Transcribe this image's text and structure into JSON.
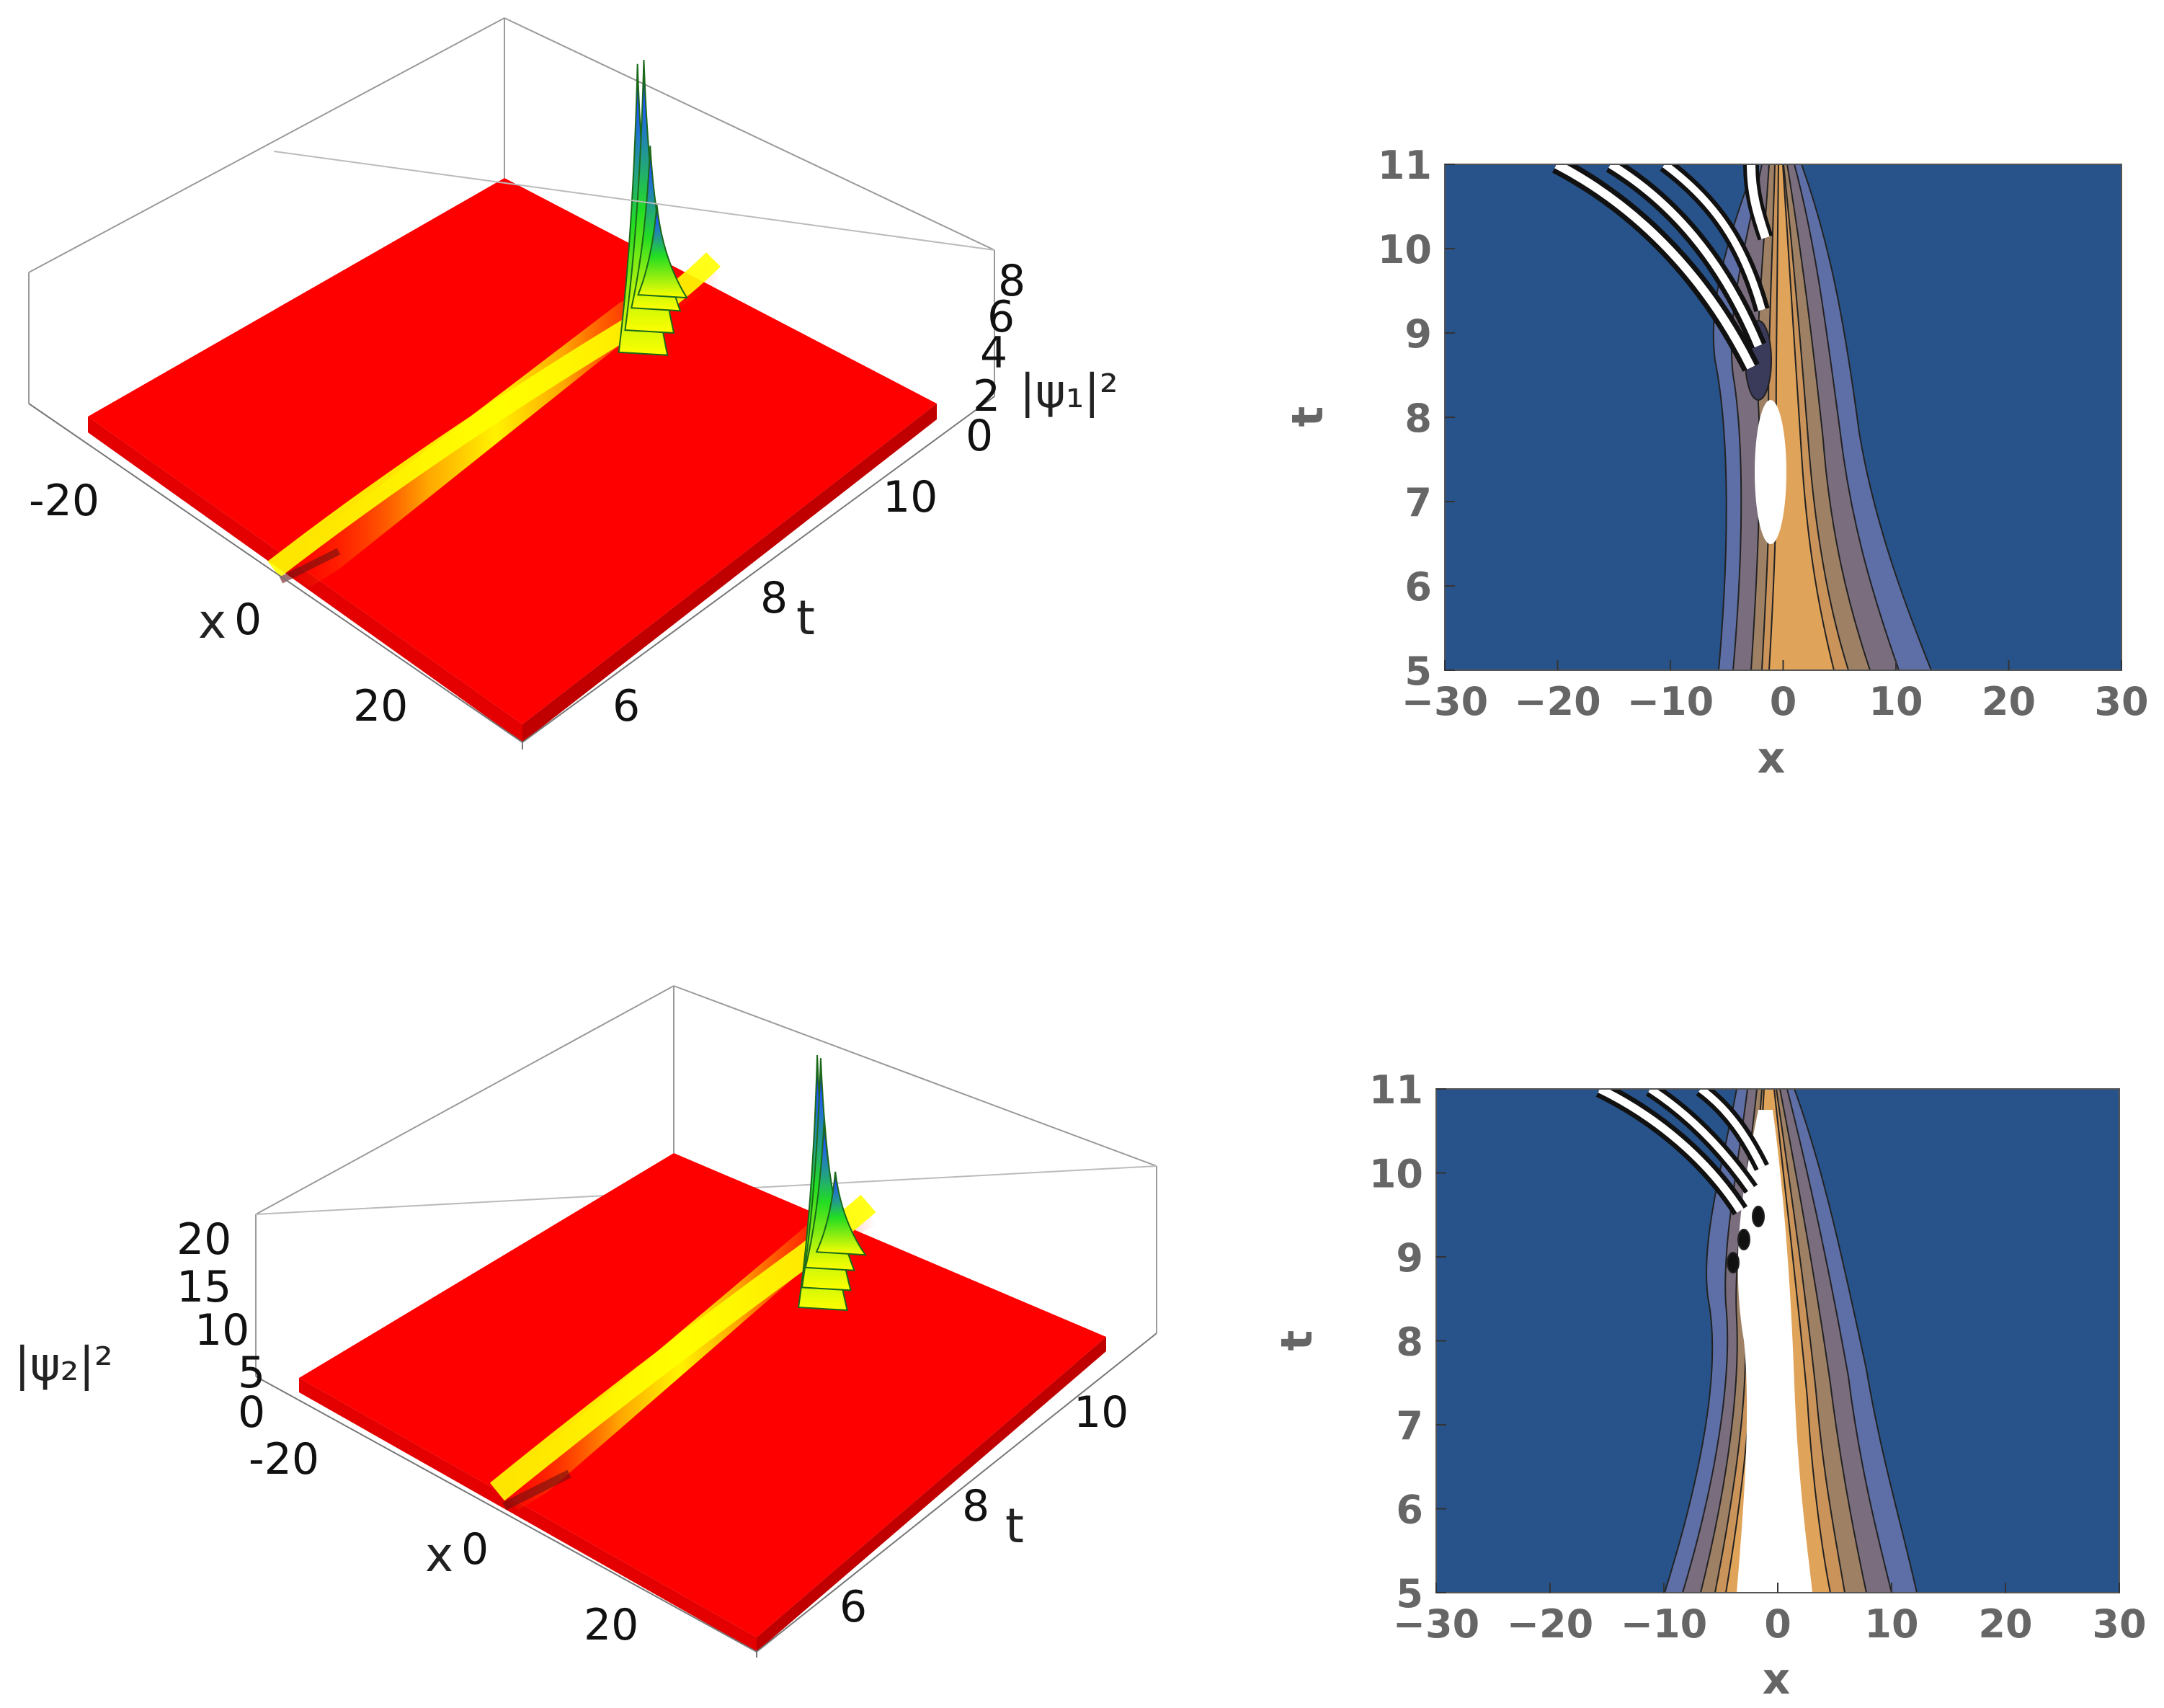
{
  "chart_data": [
    {
      "type": "surface3d",
      "panel": "top-left",
      "zlabel": "|ψ₁|²",
      "xlabel": "x",
      "ylabel": "t",
      "x_ticks": [
        "-20",
        "0",
        "20"
      ],
      "t_ticks": [
        "6",
        "8",
        "10"
      ],
      "z_ticks": [
        "0",
        "2",
        "4",
        "6",
        "8"
      ],
      "xlim": [
        -30,
        30
      ],
      "tlim": [
        5,
        11
      ],
      "zlim": [
        0,
        8
      ],
      "background_level": 1,
      "soliton": {
        "x_at_t_min": 0,
        "x_at_t_max": -2,
        "peak_value": 2.5
      },
      "spikes": [
        {
          "t": 10.1,
          "x": -3,
          "height": 8.0
        },
        {
          "t": 10.4,
          "x": -5,
          "height": 7.5
        },
        {
          "t": 10.7,
          "x": -7,
          "height": 4.5
        },
        {
          "t": 10.9,
          "x": -8,
          "height": 2.5
        }
      ],
      "colors": {
        "surface": "#ff0000",
        "ridge": "#ffff00",
        "spike": "#22dd22",
        "frame": "#999999"
      }
    },
    {
      "type": "contour",
      "panel": "top-right",
      "xlabel": "x",
      "ylabel": "t",
      "x_ticks": [
        "−30",
        "−20",
        "−10",
        "0",
        "10",
        "20",
        "30"
      ],
      "t_ticks": [
        "5",
        "6",
        "7",
        "8",
        "9",
        "10",
        "11"
      ],
      "xlim": [
        -30,
        30
      ],
      "tlim": [
        5,
        11
      ],
      "colors": {
        "background": "#27538a",
        "warm": "#e0a35a",
        "peak": "#ffffff",
        "line": "#222222"
      }
    },
    {
      "type": "surface3d",
      "panel": "bottom-left",
      "zlabel": "|ψ₂|²",
      "xlabel": "x",
      "ylabel": "t",
      "x_ticks": [
        "-20",
        "0",
        "20"
      ],
      "t_ticks": [
        "6",
        "8",
        "10"
      ],
      "z_ticks": [
        "0",
        "5",
        "10",
        "15",
        "20"
      ],
      "xlim": [
        -30,
        30
      ],
      "tlim": [
        5,
        11
      ],
      "zlim": [
        0,
        22
      ],
      "background_level": 1,
      "soliton": {
        "x_at_t_min": 0,
        "x_at_t_max": -2,
        "peak_value": 7
      },
      "spikes": [
        {
          "t": 10.0,
          "x": -3,
          "height": 22
        },
        {
          "t": 10.3,
          "x": -5,
          "height": 20
        },
        {
          "t": 10.6,
          "x": -7,
          "height": 13
        },
        {
          "t": 10.9,
          "x": -8,
          "height": 7
        }
      ],
      "colors": {
        "surface": "#ff0000",
        "ridge": "#ffff00",
        "spike": "#22dd22",
        "frame": "#999999"
      }
    },
    {
      "type": "contour",
      "panel": "bottom-right",
      "xlabel": "x",
      "ylabel": "t",
      "x_ticks": [
        "−30",
        "−20",
        "−10",
        "0",
        "10",
        "20",
        "30"
      ],
      "t_ticks": [
        "5",
        "6",
        "7",
        "8",
        "9",
        "10",
        "11"
      ],
      "xlim": [
        -30,
        30
      ],
      "tlim": [
        5,
        11
      ],
      "colors": {
        "background": "#27538a",
        "warm": "#e0a35a",
        "peak": "#ffffff",
        "line": "#222222"
      }
    }
  ]
}
